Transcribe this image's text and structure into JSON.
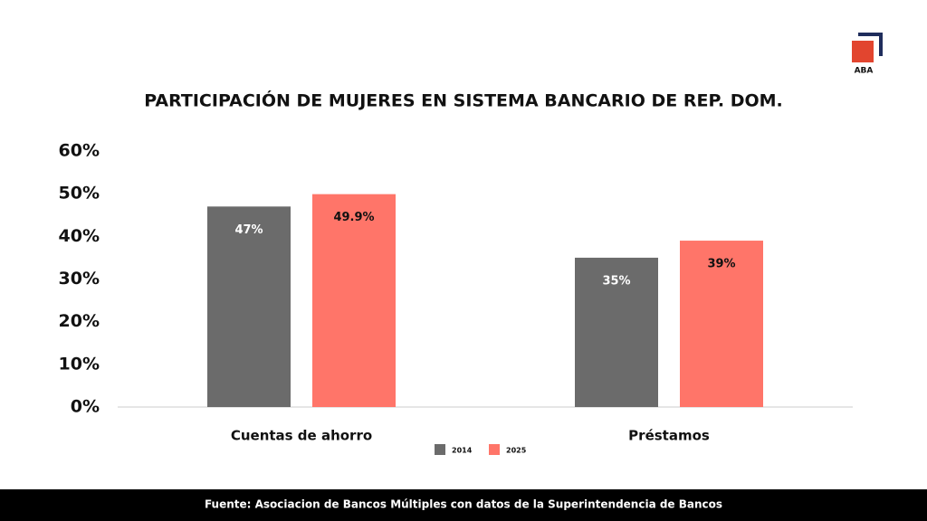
{
  "logo": "ABA",
  "chart_data": {
    "type": "bar",
    "title": "PARTICIPACIÓN DE MUJERES EN SISTEMA BANCARIO DE REP. DOM.",
    "categories": [
      "Cuentas de ahorro",
      "Préstamos"
    ],
    "series": [
      {
        "name": "2014",
        "color": "#6b6b6b",
        "values": [
          47,
          35
        ],
        "value_labels": [
          "47%",
          "35%"
        ]
      },
      {
        "name": "2025",
        "color": "#ff7569",
        "values": [
          49.9,
          39
        ],
        "value_labels": [
          "49.9%",
          "39%"
        ]
      }
    ],
    "ylim": [
      0,
      60
    ],
    "yticks": [
      {
        "value": 0,
        "label": "0%"
      },
      {
        "value": 10,
        "label": "10%"
      },
      {
        "value": 20,
        "label": "20%"
      },
      {
        "value": 30,
        "label": "30%"
      },
      {
        "value": 40,
        "label": "40%"
      },
      {
        "value": 50,
        "label": "50%"
      },
      {
        "value": 60,
        "label": "60%"
      }
    ],
    "legend": "bottom",
    "source": "Fuente: Asociacion de Bancos Múltiples con datos de la Superintendencia de Bancos"
  }
}
